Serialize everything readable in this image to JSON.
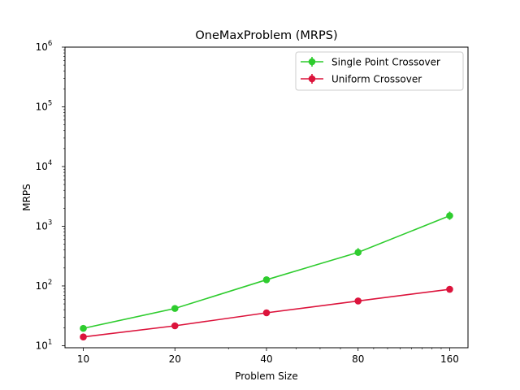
{
  "chart_data": {
    "type": "line",
    "title": "OneMaxProblem (MRPS)",
    "xlabel": "Problem Size",
    "ylabel": "MRPS",
    "x_scale": "log2",
    "y_scale": "log10",
    "x": [
      10,
      20,
      40,
      80,
      160
    ],
    "x_tick_labels": [
      "10",
      "20",
      "40",
      "80",
      "160"
    ],
    "ylim": [
      10,
      1000000
    ],
    "y_ticks": [
      {
        "base": "10",
        "exp": "1",
        "value": 10
      },
      {
        "base": "10",
        "exp": "2",
        "value": 100
      },
      {
        "base": "10",
        "exp": "3",
        "value": 1000
      },
      {
        "base": "10",
        "exp": "4",
        "value": 10000
      },
      {
        "base": "10",
        "exp": "5",
        "value": 100000
      },
      {
        "base": "10",
        "exp": "6",
        "value": 1000000
      }
    ],
    "legend_position": "top-right",
    "series": [
      {
        "name": "Single Point Crossover",
        "color": "#2ecc2e",
        "values": [
          19.5,
          42,
          127,
          365,
          1500
        ],
        "error_low": [
          17.5,
          40,
          122,
          320,
          1280
        ],
        "error_high": [
          22,
          44,
          132,
          430,
          1760
        ]
      },
      {
        "name": "Uniform Crossover",
        "color": "#dc143c",
        "values": [
          14,
          21.5,
          35.5,
          56,
          88
        ],
        "error_low": [
          12.3,
          20.5,
          31.5,
          53.5,
          84.5
        ],
        "error_high": [
          15.5,
          22.5,
          39.5,
          58.5,
          91.5
        ]
      }
    ]
  }
}
